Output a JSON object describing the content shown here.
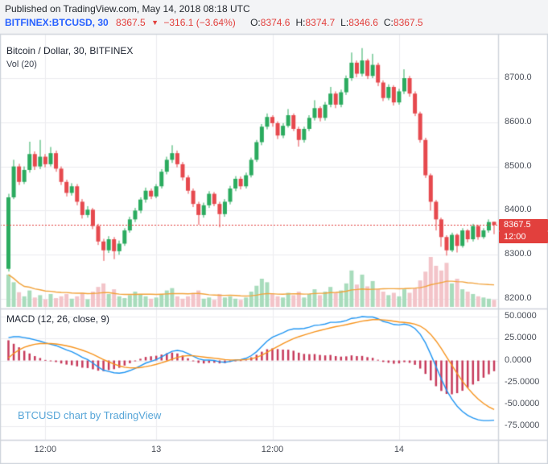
{
  "header": {
    "published": "Published on TradingView.com, May 14, 2018 08:18 UTC",
    "symbol": "BITFINEX:BTCUSD, 30",
    "last": "8367.5",
    "direction": "▼",
    "change": "−316.1 (−3.64%)",
    "ohlc": [
      {
        "label": "O:",
        "value": "8374.6"
      },
      {
        "label": "H:",
        "value": "8374.7"
      },
      {
        "label": "L:",
        "value": "8346.6"
      },
      {
        "label": "C:",
        "value": "8367.5"
      }
    ]
  },
  "watermark": "BTCUSD chart by TradingView",
  "colors": {
    "page_bg": "#f3f4f6",
    "panel_bg": "#ffffff",
    "grid": "#ececef",
    "border": "#ced3da",
    "up": "#2bab5f",
    "down": "#e6494e",
    "vol_up": "#a8dcbc",
    "vol_down": "#f3c4c9",
    "vol_ma": "#f2a33c",
    "macd_line": "#2196f3",
    "signal_line": "#f7941e",
    "histogram": "#c73b5c",
    "accent_red": "#e2403d",
    "symbol_blue": "#2962ff",
    "watermark_blue": "#58a6d8"
  },
  "chart_data": [
    {
      "pane": "price",
      "type": "candlestick",
      "title": "Bitcoin / Dollar, 30, BITFINEX",
      "interval_minutes": 30,
      "last_price": 8367.5,
      "last_bar_time": "12:00",
      "y_ticks": [
        8700,
        8600,
        8500,
        8400,
        8300,
        8200
      ],
      "x_ticks": [
        {
          "label": "12:00",
          "index": 7
        },
        {
          "label": "13",
          "index": 28
        },
        {
          "label": "12:00",
          "index": 50
        },
        {
          "label": "14",
          "index": 74
        }
      ],
      "open": [
        8268,
        8430,
        8500,
        8465,
        8492,
        8528,
        8500,
        8522,
        8505,
        8530,
        8495,
        8465,
        8440,
        8455,
        8420,
        8390,
        8402,
        8365,
        8330,
        8310,
        8335,
        8308,
        8325,
        8355,
        8380,
        8400,
        8425,
        8445,
        8432,
        8455,
        8488,
        8515,
        8530,
        8505,
        8475,
        8445,
        8415,
        8390,
        8412,
        8438,
        8415,
        8392,
        8420,
        8450,
        8472,
        8455,
        8480,
        8515,
        8555,
        8590,
        8612,
        8598,
        8570,
        8592,
        8616,
        8585,
        8560,
        8585,
        8610,
        8632,
        8610,
        8640,
        8665,
        8640,
        8668,
        8700,
        8735,
        8710,
        8740,
        8705,
        8730,
        8690,
        8655,
        8680,
        8645,
        8670,
        8700,
        8665,
        8620,
        8560,
        8480,
        8420,
        8380,
        8340,
        8310,
        8345,
        8320,
        8355,
        8335,
        8365,
        8340,
        8355,
        8374.6
      ],
      "high": [
        8438,
        8515,
        8506,
        8500,
        8556,
        8534,
        8560,
        8528,
        8544,
        8536,
        8500,
        8470,
        8462,
        8460,
        8426,
        8410,
        8406,
        8370,
        8336,
        8342,
        8340,
        8332,
        8360,
        8386,
        8406,
        8430,
        8452,
        8450,
        8460,
        8494,
        8522,
        8548,
        8536,
        8510,
        8480,
        8450,
        8420,
        8418,
        8444,
        8442,
        8420,
        8426,
        8456,
        8478,
        8477,
        8486,
        8520,
        8560,
        8596,
        8620,
        8616,
        8602,
        8598,
        8630,
        8620,
        8590,
        8590,
        8616,
        8650,
        8636,
        8646,
        8680,
        8670,
        8674,
        8706,
        8758,
        8740,
        8768,
        8744,
        8755,
        8735,
        8695,
        8686,
        8684,
        8676,
        8720,
        8705,
        8670,
        8624,
        8565,
        8484,
        8424,
        8384,
        8344,
        8350,
        8348,
        8360,
        8358,
        8370,
        8368,
        8360,
        8380,
        8374.7
      ],
      "low": [
        8262,
        8426,
        8458,
        8460,
        8486,
        8492,
        8494,
        8498,
        8500,
        8488,
        8458,
        8432,
        8434,
        8412,
        8382,
        8384,
        8358,
        8322,
        8286,
        8304,
        8290,
        8300,
        8320,
        8350,
        8374,
        8394,
        8418,
        8426,
        8428,
        8450,
        8482,
        8508,
        8498,
        8468,
        8438,
        8408,
        8368,
        8384,
        8406,
        8410,
        8362,
        8386,
        8414,
        8444,
        8448,
        8450,
        8475,
        8510,
        8548,
        8584,
        8590,
        8562,
        8564,
        8588,
        8580,
        8545,
        8554,
        8580,
        8604,
        8602,
        8604,
        8634,
        8632,
        8634,
        8662,
        8694,
        8702,
        8704,
        8698,
        8700,
        8682,
        8648,
        8650,
        8638,
        8640,
        8664,
        8658,
        8614,
        8554,
        8474,
        8400,
        8355,
        8318,
        8298,
        8306,
        8305,
        8316,
        8328,
        8330,
        8334,
        8336,
        8350,
        8346.6
      ],
      "close": [
        8430,
        8500,
        8465,
        8492,
        8528,
        8500,
        8522,
        8505,
        8530,
        8495,
        8465,
        8440,
        8455,
        8420,
        8390,
        8402,
        8365,
        8330,
        8310,
        8335,
        8308,
        8325,
        8355,
        8380,
        8400,
        8425,
        8445,
        8432,
        8455,
        8488,
        8515,
        8530,
        8505,
        8475,
        8445,
        8415,
        8390,
        8412,
        8438,
        8415,
        8392,
        8420,
        8450,
        8472,
        8455,
        8480,
        8515,
        8555,
        8590,
        8612,
        8598,
        8570,
        8592,
        8616,
        8585,
        8560,
        8585,
        8610,
        8632,
        8610,
        8640,
        8665,
        8640,
        8668,
        8700,
        8735,
        8710,
        8740,
        8705,
        8730,
        8690,
        8655,
        8680,
        8645,
        8670,
        8700,
        8665,
        8620,
        8560,
        8480,
        8420,
        8380,
        8340,
        8310,
        8345,
        8320,
        8355,
        8335,
        8365,
        8340,
        8355,
        8374,
        8367.5
      ]
    },
    {
      "pane": "volume",
      "type": "bar",
      "title": "Vol (20)",
      "values": [
        55,
        42,
        25,
        18,
        28,
        16,
        20,
        13,
        22,
        15,
        18,
        22,
        14,
        18,
        24,
        13,
        26,
        34,
        40,
        22,
        30,
        18,
        15,
        20,
        26,
        22,
        18,
        14,
        16,
        22,
        28,
        32,
        18,
        14,
        18,
        24,
        28,
        14,
        16,
        12,
        22,
        16,
        18,
        14,
        12,
        16,
        26,
        36,
        48,
        42,
        22,
        18,
        16,
        24,
        20,
        26,
        16,
        22,
        30,
        20,
        26,
        34,
        24,
        28,
        40,
        62,
        38,
        55,
        35,
        44,
        30,
        26,
        20,
        24,
        18,
        30,
        24,
        32,
        45,
        60,
        85,
        70,
        62,
        75,
        40,
        48,
        30,
        26,
        22,
        18,
        16,
        14,
        12
      ]
    },
    {
      "pane": "macd",
      "type": "line+histogram",
      "title": "MACD (12, 26, close, 9)",
      "y_ticks": [
        50,
        25,
        0,
        -25,
        -50,
        -75
      ],
      "macd": [
        26,
        27,
        27,
        26,
        25,
        23.5,
        22,
        20,
        18.5,
        17,
        14.5,
        12,
        10,
        7,
        3.5,
        1,
        -3,
        -7.5,
        -11,
        -12.5,
        -14,
        -14.5,
        -13.5,
        -11.5,
        -9,
        -6,
        -3,
        -1,
        1,
        4,
        7.5,
        10.5,
        11.5,
        10.5,
        8,
        5,
        2,
        0.5,
        0.5,
        0,
        -1.5,
        -2,
        -1,
        0.5,
        1,
        2.5,
        5.5,
        10,
        16,
        22,
        26.5,
        29,
        31.5,
        34.5,
        36,
        36,
        36.5,
        38,
        40,
        40.5,
        41.5,
        43.5,
        43.5,
        44,
        45.5,
        48,
        48.5,
        50,
        49.5,
        49.5,
        47.5,
        44.5,
        43,
        41,
        40.5,
        41.5,
        40,
        36.5,
        30,
        20,
        7,
        -7,
        -21,
        -34,
        -44,
        -52,
        -58,
        -62.5,
        -65.5,
        -67.5,
        -68.5,
        -68.5,
        -68
      ],
      "signal": [
        3,
        8,
        12,
        15,
        17,
        18.5,
        19.2,
        19.4,
        19.2,
        18.8,
        17.9,
        16.7,
        15.4,
        13.7,
        11.7,
        9.6,
        7,
        4.1,
        1.1,
        -1.6,
        -4.1,
        -6.2,
        -7.7,
        -8.4,
        -8.5,
        -8,
        -7,
        -5.8,
        -4.4,
        -2.7,
        -0.7,
        1.5,
        3.5,
        4.9,
        5.5,
        5.4,
        4.7,
        3.9,
        3.2,
        2.6,
        1.8,
        1,
        0.6,
        0.6,
        0.7,
        1,
        1.9,
        3.5,
        6,
        9.2,
        12.7,
        16,
        19.1,
        22.2,
        24.9,
        27.1,
        29,
        30.8,
        32.7,
        34.2,
        35.7,
        37.2,
        38.5,
        39.6,
        40.8,
        42.2,
        43.5,
        44.8,
        45.7,
        46.5,
        46.7,
        46.2,
        45.6,
        44.7,
        43.8,
        43.4,
        42.7,
        41.4,
        39.2,
        35.3,
        29.7,
        22.3,
        13.7,
        4.1,
        -5.5,
        -14.8,
        -23.5,
        -31.3,
        -38.1,
        -44,
        -48.9,
        -52.8,
        -55.8
      ]
    }
  ]
}
